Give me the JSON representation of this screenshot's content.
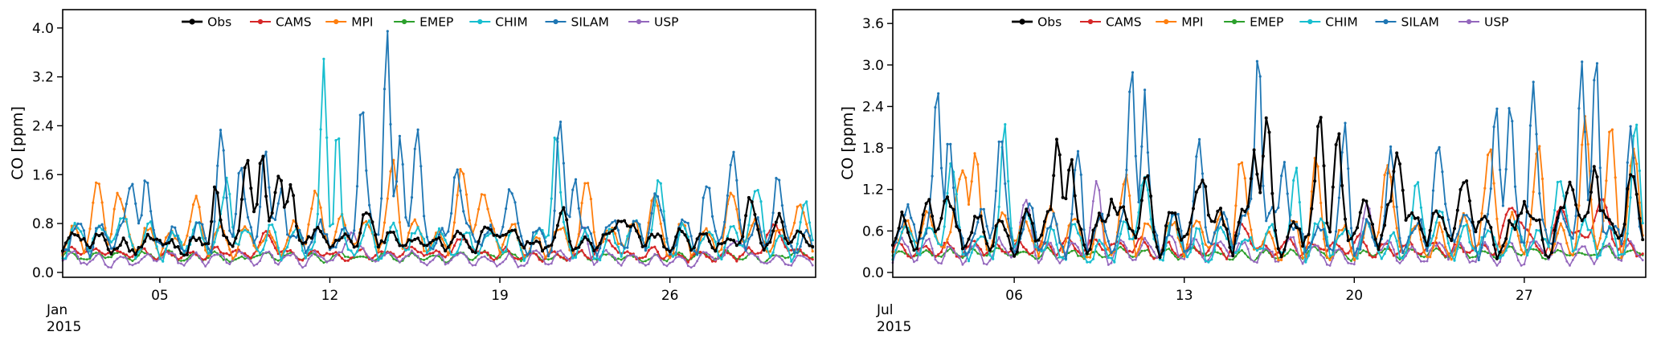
{
  "figure": {
    "background": "#ffffff",
    "frame_color": "#000000"
  },
  "legend_labels": [
    "Obs",
    "CAMS",
    "MPI",
    "EMEP",
    "CHIM",
    "SILAM",
    "USP"
  ],
  "chart_data": [
    {
      "type": "line",
      "title": "",
      "ylabel": "CO [ppm]",
      "xlabel": "",
      "offset": {
        "month": "Jan",
        "year": "2015"
      },
      "legend_position": "upper center, inside axes, horizontal",
      "grid": false,
      "ylim": [
        0.0,
        4.0
      ],
      "ydomain": [
        -0.08,
        4.3
      ],
      "yticks": [
        0.0,
        0.8,
        1.6,
        2.4,
        3.2,
        4.0
      ],
      "xdomain": [
        0,
        31
      ],
      "days": 31,
      "xticks": [
        {
          "t": 4,
          "label": "05"
        },
        {
          "t": 11,
          "label": "12"
        },
        {
          "t": 18,
          "label": "19"
        },
        {
          "t": 25,
          "label": "26"
        }
      ],
      "zorder": [
        3,
        1,
        6,
        2,
        4,
        5,
        0
      ],
      "series": [
        {
          "name": "Obs",
          "color": "#000000",
          "lw": 2.2,
          "ms": 2.0,
          "base": 0.52,
          "diurnal": 0.1,
          "phase": 0.2,
          "noise": 0.1,
          "seed": 101,
          "min": 0.15,
          "spikes": [
            [
              6.3,
              1.35,
              0.2
            ],
            [
              7.6,
              1.75,
              0.25
            ],
            [
              8.2,
              2.05,
              0.2
            ],
            [
              8.9,
              1.8,
              0.25
            ],
            [
              9.4,
              1.3,
              0.2
            ],
            [
              12.6,
              0.95,
              0.3
            ],
            [
              20.6,
              1.05,
              0.25
            ],
            [
              23.0,
              0.95,
              0.2
            ],
            [
              28.3,
              1.2,
              0.3
            ],
            [
              29.5,
              0.9,
              0.2
            ]
          ]
        },
        {
          "name": "CAMS",
          "color": "#d62728",
          "lw": 1.8,
          "ms": 1.6,
          "base": 0.3,
          "diurnal": 0.07,
          "phase": 0.0,
          "noise": 0.045,
          "seed": 102,
          "min": 0.12,
          "spikes": [
            [
              8.4,
              0.6,
              0.4
            ],
            [
              16.6,
              0.55,
              0.4
            ],
            [
              22.5,
              0.5,
              0.4
            ],
            [
              29.3,
              0.7,
              0.5
            ]
          ]
        },
        {
          "name": "MPI",
          "color": "#ff7f0e",
          "lw": 1.8,
          "ms": 1.6,
          "base": 0.55,
          "diurnal": 0.22,
          "phase": 0.25,
          "noise": 0.1,
          "seed": 103,
          "min": 0.2,
          "spikes": [
            [
              1.4,
              1.5,
              0.3
            ],
            [
              2.2,
              1.3,
              0.25
            ],
            [
              5.5,
              1.1,
              0.3
            ],
            [
              10.4,
              1.2,
              0.3
            ],
            [
              13.6,
              1.7,
              0.25
            ],
            [
              16.4,
              1.45,
              0.3
            ],
            [
              17.2,
              1.3,
              0.25
            ],
            [
              21.6,
              1.35,
              0.3
            ],
            [
              24.3,
              1.1,
              0.3
            ],
            [
              27.6,
              1.15,
              0.3
            ],
            [
              30.2,
              1.0,
              0.3
            ]
          ]
        },
        {
          "name": "EMEP",
          "color": "#2ca02c",
          "lw": 1.6,
          "ms": 1.4,
          "base": 0.26,
          "diurnal": 0.05,
          "phase": 0.1,
          "noise": 0.035,
          "seed": 104,
          "min": 0.12,
          "spikes": []
        },
        {
          "name": "CHIM",
          "color": "#17becf",
          "lw": 1.8,
          "ms": 1.6,
          "base": 0.52,
          "diurnal": 0.22,
          "phase": 0.3,
          "noise": 0.11,
          "seed": 105,
          "min": 0.18,
          "spikes": [
            [
              6.8,
              1.5,
              0.25
            ],
            [
              10.75,
              3.45,
              0.18
            ],
            [
              11.3,
              2.6,
              0.15
            ],
            [
              20.3,
              2.35,
              0.2
            ],
            [
              24.6,
              1.25,
              0.25
            ],
            [
              28.6,
              1.0,
              0.3
            ],
            [
              30.6,
              0.95,
              0.2
            ]
          ]
        },
        {
          "name": "SILAM",
          "color": "#1f77b4",
          "lw": 1.8,
          "ms": 1.6,
          "base": 0.6,
          "diurnal": 0.22,
          "phase": 0.35,
          "noise": 0.13,
          "seed": 106,
          "min": 0.2,
          "spikes": [
            [
              2.9,
              1.6,
              0.25
            ],
            [
              3.4,
              1.45,
              0.2
            ],
            [
              6.5,
              2.15,
              0.22
            ],
            [
              7.3,
              1.85,
              0.2
            ],
            [
              8.3,
              2.25,
              0.22
            ],
            [
              9.0,
              1.7,
              0.2
            ],
            [
              12.3,
              2.9,
              0.2
            ],
            [
              13.35,
              3.85,
              0.18
            ],
            [
              13.9,
              2.3,
              0.18
            ],
            [
              14.6,
              1.85,
              0.2
            ],
            [
              16.2,
              1.75,
              0.22
            ],
            [
              18.3,
              1.4,
              0.25
            ],
            [
              20.45,
              2.35,
              0.2
            ],
            [
              21.1,
              1.65,
              0.2
            ],
            [
              24.4,
              1.35,
              0.25
            ],
            [
              26.5,
              1.3,
              0.25
            ],
            [
              27.6,
              1.5,
              0.25
            ],
            [
              29.4,
              1.45,
              0.25
            ]
          ]
        },
        {
          "name": "USP",
          "color": "#9467bd",
          "lw": 1.6,
          "ms": 1.4,
          "base": 0.22,
          "diurnal": 0.09,
          "phase": 0.15,
          "noise": 0.05,
          "seed": 107,
          "min": 0.08,
          "spikes": [
            [
              11.9,
              0.75,
              0.3
            ],
            [
              21.4,
              0.65,
              0.3
            ],
            [
              27.8,
              0.6,
              0.3
            ]
          ]
        }
      ]
    },
    {
      "type": "line",
      "title": "",
      "ylabel": "CO [ppm]",
      "xlabel": "",
      "offset": {
        "month": "Jul",
        "year": "2015"
      },
      "legend_position": "upper center, inside axes, horizontal",
      "grid": false,
      "ylim": [
        0.0,
        3.6
      ],
      "ydomain": [
        -0.07,
        3.8
      ],
      "yticks": [
        0.0,
        0.6,
        1.2,
        1.8,
        2.4,
        3.0,
        3.6
      ],
      "xdomain": [
        0,
        31
      ],
      "days": 31,
      "xticks": [
        {
          "t": 5,
          "label": "06"
        },
        {
          "t": 12,
          "label": "13"
        },
        {
          "t": 19,
          "label": "20"
        },
        {
          "t": 26,
          "label": "27"
        }
      ],
      "zorder": [
        3,
        1,
        6,
        2,
        4,
        5,
        0
      ],
      "series": [
        {
          "name": "Obs",
          "color": "#000000",
          "lw": 2.2,
          "ms": 2.0,
          "base": 0.62,
          "diurnal": 0.22,
          "phase": 0.2,
          "noise": 0.13,
          "seed": 201,
          "min": 0.2,
          "spikes": [
            [
              2.1,
              1.25,
              0.25
            ],
            [
              6.8,
              2.05,
              0.2
            ],
            [
              7.3,
              1.5,
              0.2
            ],
            [
              9.0,
              1.35,
              0.25
            ],
            [
              10.5,
              1.3,
              0.25
            ],
            [
              12.8,
              1.35,
              0.25
            ],
            [
              14.9,
              1.75,
              0.2
            ],
            [
              15.4,
              1.95,
              0.2
            ],
            [
              17.6,
              2.05,
              0.22
            ],
            [
              18.3,
              1.9,
              0.2
            ],
            [
              20.8,
              1.75,
              0.25
            ],
            [
              23.6,
              1.2,
              0.25
            ],
            [
              26.0,
              1.3,
              0.25
            ],
            [
              27.9,
              1.55,
              0.25
            ],
            [
              28.9,
              1.75,
              0.22
            ],
            [
              30.4,
              1.25,
              0.25
            ]
          ]
        },
        {
          "name": "CAMS",
          "color": "#d62728",
          "lw": 1.8,
          "ms": 1.6,
          "base": 0.34,
          "diurnal": 0.1,
          "phase": 0.0,
          "noise": 0.05,
          "seed": 202,
          "min": 0.15,
          "spikes": [
            [
              14.5,
              0.7,
              0.4
            ],
            [
              25.6,
              0.85,
              0.5
            ],
            [
              27.6,
              0.95,
              0.4
            ],
            [
              29.1,
              1.0,
              0.5
            ]
          ]
        },
        {
          "name": "MPI",
          "color": "#ff7f0e",
          "lw": 1.8,
          "ms": 1.6,
          "base": 0.5,
          "diurnal": 0.26,
          "phase": 0.25,
          "noise": 0.1,
          "seed": 203,
          "min": 0.18,
          "spikes": [
            [
              2.9,
              1.75,
              0.25
            ],
            [
              3.4,
              1.5,
              0.2
            ],
            [
              9.6,
              1.25,
              0.3
            ],
            [
              14.3,
              1.55,
              0.25
            ],
            [
              17.4,
              1.5,
              0.25
            ],
            [
              20.3,
              1.3,
              0.3
            ],
            [
              24.6,
              1.45,
              0.3
            ],
            [
              26.6,
              1.7,
              0.25
            ],
            [
              28.5,
              2.05,
              0.25
            ],
            [
              29.6,
              1.85,
              0.25
            ],
            [
              30.5,
              1.6,
              0.25
            ]
          ]
        },
        {
          "name": "EMEP",
          "color": "#2ca02c",
          "lw": 1.6,
          "ms": 1.4,
          "base": 0.27,
          "diurnal": 0.06,
          "phase": 0.1,
          "noise": 0.035,
          "seed": 204,
          "min": 0.12,
          "spikes": []
        },
        {
          "name": "CHIM",
          "color": "#17becf",
          "lw": 1.8,
          "ms": 1.6,
          "base": 0.45,
          "diurnal": 0.22,
          "phase": 0.3,
          "noise": 0.12,
          "seed": 205,
          "min": 0.15,
          "spikes": [
            [
              2.4,
              1.35,
              0.25
            ],
            [
              4.6,
              1.85,
              0.2
            ],
            [
              10.3,
              1.3,
              0.25
            ],
            [
              16.6,
              1.25,
              0.25
            ],
            [
              21.6,
              1.05,
              0.25
            ],
            [
              27.4,
              1.2,
              0.3
            ],
            [
              30.6,
              1.9,
              0.2
            ]
          ]
        },
        {
          "name": "SILAM",
          "color": "#1f77b4",
          "lw": 1.8,
          "ms": 1.6,
          "base": 0.55,
          "diurnal": 0.26,
          "phase": 0.35,
          "noise": 0.14,
          "seed": 206,
          "min": 0.18,
          "spikes": [
            [
              1.85,
              2.75,
              0.18
            ],
            [
              2.3,
              2.2,
              0.18
            ],
            [
              4.4,
              2.0,
              0.2
            ],
            [
              7.6,
              1.7,
              0.22
            ],
            [
              9.85,
              3.05,
              0.18
            ],
            [
              10.35,
              2.55,
              0.18
            ],
            [
              12.6,
              1.65,
              0.22
            ],
            [
              15.05,
              3.3,
              0.18
            ],
            [
              16.1,
              1.9,
              0.2
            ],
            [
              18.6,
              1.85,
              0.22
            ],
            [
              20.5,
              1.6,
              0.22
            ],
            [
              22.4,
              1.6,
              0.25
            ],
            [
              24.85,
              2.45,
              0.2
            ],
            [
              25.4,
              2.15,
              0.2
            ],
            [
              26.35,
              2.85,
              0.2
            ],
            [
              28.35,
              3.15,
              0.18
            ],
            [
              28.95,
              3.4,
              0.18
            ],
            [
              30.35,
              2.05,
              0.2
            ]
          ]
        },
        {
          "name": "USP",
          "color": "#9467bd",
          "lw": 1.6,
          "ms": 1.4,
          "base": 0.3,
          "diurnal": 0.14,
          "phase": 0.15,
          "noise": 0.06,
          "seed": 207,
          "min": 0.1,
          "spikes": [
            [
              5.5,
              0.9,
              0.3
            ],
            [
              8.4,
              1.2,
              0.25
            ],
            [
              19.6,
              0.9,
              0.3
            ]
          ]
        }
      ]
    }
  ]
}
